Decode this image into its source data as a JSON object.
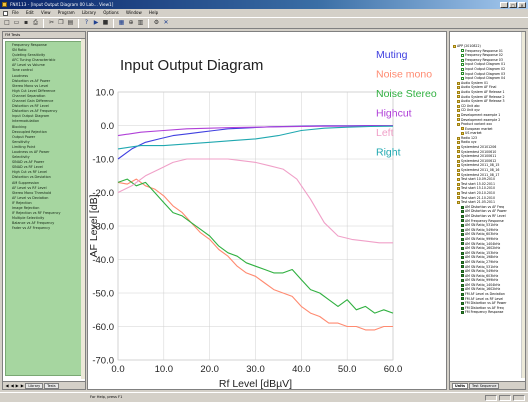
{
  "window": {
    "title": "FNX113 - [Input Output Diagram 00 Lab... View1]"
  },
  "menu": [
    "File",
    "Edit",
    "View",
    "Program",
    "Library",
    "Options",
    "Window",
    "Help"
  ],
  "toolbar_icons": [
    "new-icon",
    "open-icon",
    "save-icon",
    "print-icon",
    "cut-icon",
    "copy-icon",
    "paste-icon",
    "help-icon",
    "run-icon",
    "stop-icon",
    "chart-icon",
    "zoom-icon",
    "table-icon",
    "settings-icon",
    "graph-icon"
  ],
  "left_panel": {
    "header": "FM Tests",
    "items": [
      "Frequency Response",
      "SN Ratio",
      "Quieting Sensitivity",
      "AFC Tuning Characteristic",
      "AF Level vs Volume",
      "Tone control",
      "Loudness",
      "Distortion vs AF Power",
      "Stereo Mono vs Level",
      "High Cut Level Difference",
      "Channel Separation",
      "Channel Gain Difference",
      "Distortion vs RF Level",
      "Distortion vs AF Frequency",
      "Input Output Diagram",
      "Intermodulation",
      "Blocking",
      "Decoupled Rejection",
      "Output Power",
      "Sensitivity",
      "Limiting Point",
      "Loudness vs AF Power",
      "Selectivity",
      "SINAD vs AF Power",
      "SINAD vs RF Level",
      "High Cut vs RF Level",
      "Distortion vs Deviation",
      "AM Suppression",
      "AF Level vs RF Level",
      "Stereo Mono Threshold",
      "AF Level vs Deviation",
      "IF Rejection",
      "Image Rejection",
      "IF Rejection vs RF Frequency",
      "Multiple Selectivity",
      "Balance vs AF Frequency",
      "Fader vs AF Frequency"
    ],
    "tabs": [
      "Library",
      "Tests"
    ]
  },
  "right_panel": {
    "tree": [
      {
        "icon": "f",
        "label": "APP (2010822)",
        "indent": 0
      },
      {
        "icon": "d",
        "label": "Frequency Response 01",
        "indent": 2
      },
      {
        "icon": "d",
        "label": "Frequency Response 02",
        "indent": 2
      },
      {
        "icon": "d",
        "label": "Frequency Response 03",
        "indent": 2
      },
      {
        "icon": "d",
        "label": "Input Output Diagram 01",
        "indent": 2
      },
      {
        "icon": "d",
        "label": "Input Output Diagram 02",
        "indent": 2
      },
      {
        "icon": "d",
        "label": "Input Output Diagram 03",
        "indent": 2
      },
      {
        "icon": "d",
        "label": "Input Output Diagram 04",
        "indent": 2
      },
      {
        "icon": "f",
        "label": "Audio System 01",
        "indent": 1
      },
      {
        "icon": "f",
        "label": "Audio System AF Final",
        "indent": 1
      },
      {
        "icon": "f",
        "label": "Audio System AF Release 1",
        "indent": 1
      },
      {
        "icon": "f",
        "label": "Audio System AF Release 2",
        "indent": 1
      },
      {
        "icon": "f",
        "label": "Audio System AF Release 3",
        "indent": 1
      },
      {
        "icon": "f",
        "label": "CD Unit abc",
        "indent": 1
      },
      {
        "icon": "f",
        "label": "CD Unit xyz",
        "indent": 1
      },
      {
        "icon": "f",
        "label": "Development example 1",
        "indent": 1
      },
      {
        "icon": "f",
        "label": "Development example 2",
        "indent": 1
      },
      {
        "icon": "f",
        "label": "Product variant xxx",
        "indent": 1
      },
      {
        "icon": "f",
        "label": "European market",
        "indent": 2
      },
      {
        "icon": "f",
        "label": "US market",
        "indent": 2
      },
      {
        "icon": "f",
        "label": "Radio 123",
        "indent": 1
      },
      {
        "icon": "f",
        "label": "Radio xyz",
        "indent": 1
      },
      {
        "icon": "f",
        "label": "Systemtest 20101206",
        "indent": 1
      },
      {
        "icon": "f",
        "label": "Systemtest 20100610",
        "indent": 1
      },
      {
        "icon": "f",
        "label": "Systemtest 20100611",
        "indent": 1
      },
      {
        "icon": "f",
        "label": "Systemtest 20100612",
        "indent": 1
      },
      {
        "icon": "f",
        "label": "Systemtest 2011_08_15",
        "indent": 1
      },
      {
        "icon": "f",
        "label": "Systemtest 2011_08_16",
        "indent": 1
      },
      {
        "icon": "f",
        "label": "Systemtest 2011_08_17",
        "indent": 1
      },
      {
        "icon": "f",
        "label": "Test start 10.09.2010",
        "indent": 1
      },
      {
        "icon": "f",
        "label": "Test start 15.02.2011",
        "indent": 1
      },
      {
        "icon": "f",
        "label": "Test start 15.10.2010",
        "indent": 1
      },
      {
        "icon": "f",
        "label": "Test start 20.10.2010",
        "indent": 1
      },
      {
        "icon": "f",
        "label": "Test start 21.10.2010",
        "indent": 1
      },
      {
        "icon": "f",
        "label": "Test start 21.05.2011",
        "indent": 1
      },
      {
        "icon": "g",
        "label": "AM Distortion vs AF Freq",
        "indent": 2
      },
      {
        "icon": "g",
        "label": "AM Distortion vs AF Power",
        "indent": 2
      },
      {
        "icon": "g",
        "label": "AM Distortion vs RF Level",
        "indent": 2
      },
      {
        "icon": "g",
        "label": "AM Frequency Response",
        "indent": 2
      },
      {
        "icon": "g",
        "label": "AM SN Ratio_531kHz",
        "indent": 2
      },
      {
        "icon": "g",
        "label": "AM SN Ratio_549kHz",
        "indent": 2
      },
      {
        "icon": "g",
        "label": "AM SN Ratio_603kHz",
        "indent": 2
      },
      {
        "icon": "g",
        "label": "AM SN Ratio_999kHz",
        "indent": 2
      },
      {
        "icon": "g",
        "label": "AM SN Ratio_1404kHz",
        "indent": 2
      },
      {
        "icon": "g",
        "label": "AM SN Ratio_1602kHz",
        "indent": 2
      },
      {
        "icon": "g",
        "label": "AM SN Ratio_153kHz",
        "indent": 2
      },
      {
        "icon": "g",
        "label": "AM SN Ratio_198kHz",
        "indent": 2
      },
      {
        "icon": "g",
        "label": "AM SN Ratio_279kHz",
        "indent": 2
      },
      {
        "icon": "g",
        "label": "AM SN Ratio_531kHz",
        "indent": 2
      },
      {
        "icon": "g",
        "label": "AM SN Ratio_549kHz",
        "indent": 2
      },
      {
        "icon": "g",
        "label": "AM SN Ratio_603kHz",
        "indent": 2
      },
      {
        "icon": "g",
        "label": "AM SN Ratio_999kHz",
        "indent": 2
      },
      {
        "icon": "g",
        "label": "AM SN Ratio_1404kHz",
        "indent": 2
      },
      {
        "icon": "g",
        "label": "AM SN Ratio_1602kHz",
        "indent": 2
      },
      {
        "icon": "g",
        "label": "FM AF Level vs Deviation",
        "indent": 2
      },
      {
        "icon": "g",
        "label": "FM AF Level vs RF Level",
        "indent": 2
      },
      {
        "icon": "g",
        "label": "FM Distortion vs AF Power",
        "indent": 2
      },
      {
        "icon": "g",
        "label": "FM Distortion vs AF Freq",
        "indent": 2
      },
      {
        "icon": "g",
        "label": "FM Frequency Response",
        "indent": 2
      }
    ],
    "tabs": [
      "Units",
      "Test Sequence"
    ]
  },
  "status": {
    "text": "For Help, press F1"
  },
  "chart_data": {
    "type": "line",
    "title": "Input Output Diagram",
    "xlabel": "Rf Level [dBµV]",
    "ylabel": "AF Level [dB]",
    "xlim": [
      0,
      60
    ],
    "ylim": [
      -70,
      10
    ],
    "xticks": [
      "0.0",
      "10.0",
      "20.0",
      "30.0",
      "40.0",
      "50.0",
      "60.0"
    ],
    "yticks": [
      "10.0",
      "0.0",
      "-10.0",
      "-20.0",
      "-30.0",
      "-40.0",
      "-50.0",
      "-60.0",
      "-70.0"
    ],
    "grid": true,
    "legend": "top-right",
    "series": [
      {
        "name": "Muting",
        "color": "#4040e0",
        "x": [
          0,
          3,
          6,
          9,
          12,
          15,
          18,
          21,
          24,
          27,
          30,
          33,
          36,
          40,
          45,
          50,
          55,
          60
        ],
        "y": [
          -10,
          -7,
          -5,
          -4,
          -3,
          -2.5,
          -2,
          -1.5,
          -1,
          -0.8,
          -0.6,
          -0.4,
          -0.3,
          -0.2,
          -0.1,
          -0.1,
          0,
          0
        ]
      },
      {
        "name": "Noise mono",
        "color": "#ff8a70",
        "x": [
          0,
          2,
          4,
          6,
          8,
          10,
          12,
          14,
          16,
          18,
          20,
          22,
          24,
          26,
          28,
          30,
          32,
          34,
          36,
          38,
          40,
          42,
          44,
          46,
          48,
          50,
          52,
          54,
          56,
          58,
          60
        ],
        "y": [
          -17,
          -17.5,
          -16,
          -18,
          -19,
          -21,
          -24,
          -26,
          -29,
          -32,
          -34,
          -37,
          -39,
          -42,
          -44,
          -45,
          -47,
          -49,
          -50,
          -51,
          -54,
          -56,
          -57,
          -59,
          -59,
          -60,
          -60,
          -61,
          -61,
          -60,
          -60
        ]
      },
      {
        "name": "Noise Stereo",
        "color": "#30b040",
        "x": [
          0,
          2,
          4,
          6,
          8,
          10,
          12,
          14,
          16,
          18,
          20,
          22,
          24,
          26,
          28,
          30,
          32,
          34,
          36,
          38,
          40,
          42,
          44,
          46,
          48,
          50,
          52,
          54,
          56,
          58,
          60
        ],
        "y": [
          -17,
          -16,
          -18,
          -17,
          -20,
          -23,
          -26,
          -27,
          -29,
          -31,
          -33,
          -36,
          -38,
          -39,
          -41,
          -42,
          -43,
          -44,
          -44,
          -43,
          -46,
          -49,
          -50,
          -52,
          -54,
          -52,
          -55,
          -54,
          -56,
          -55,
          -56
        ]
      },
      {
        "name": "Highcut",
        "color": "#b040d8",
        "x": [
          0,
          5,
          10,
          15,
          20,
          25,
          30,
          35,
          40,
          45,
          50,
          55,
          60
        ],
        "y": [
          -3,
          -2,
          -1.5,
          -1,
          -0.8,
          -0.6,
          -0.5,
          -0.4,
          -0.3,
          -0.2,
          -0.2,
          -0.1,
          0
        ]
      },
      {
        "name": "Left",
        "color": "#f0a0c8",
        "x": [
          0,
          3,
          6,
          9,
          12,
          15,
          18,
          21,
          24,
          27,
          30,
          33,
          36,
          39,
          42,
          45,
          48,
          51,
          54,
          57,
          60
        ],
        "y": [
          -20,
          -18,
          -15,
          -13,
          -11,
          -10,
          -10,
          -10,
          -10,
          -10.5,
          -11,
          -12,
          -13,
          -16,
          -22,
          -29,
          -33,
          -34,
          -34.5,
          -35,
          -35
        ]
      },
      {
        "name": "Right",
        "color": "#20a8b0",
        "x": [
          0,
          5,
          10,
          15,
          20,
          25,
          30,
          35,
          40,
          45,
          50,
          55,
          60
        ],
        "y": [
          -7,
          -6,
          -6,
          -5.5,
          -5,
          -4.5,
          -4,
          -3,
          -1.5,
          -0.8,
          -0.5,
          -0.3,
          -0.2
        ]
      }
    ]
  }
}
